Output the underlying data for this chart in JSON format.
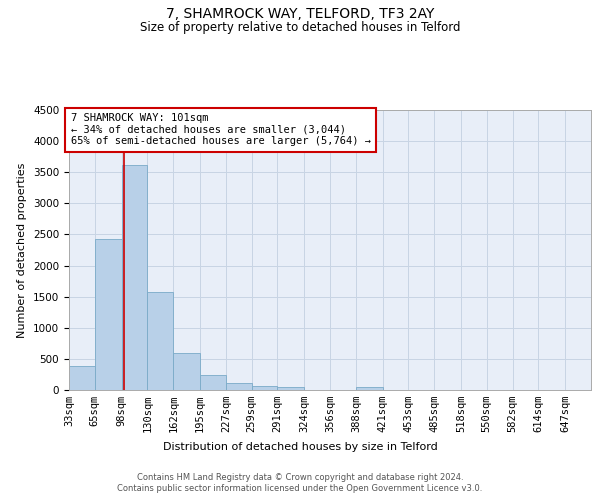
{
  "title": "7, SHAMROCK WAY, TELFORD, TF3 2AY",
  "subtitle": "Size of property relative to detached houses in Telford",
  "xlabel": "Distribution of detached houses by size in Telford",
  "ylabel": "Number of detached properties",
  "footer_line1": "Contains HM Land Registry data © Crown copyright and database right 2024.",
  "footer_line2": "Contains public sector information licensed under the Open Government Licence v3.0.",
  "annotation_line1": "7 SHAMROCK WAY: 101sqm",
  "annotation_line2": "← 34% of detached houses are smaller (3,044)",
  "annotation_line3": "65% of semi-detached houses are larger (5,764) →",
  "property_size": 101,
  "bar_edges": [
    33,
    65,
    98,
    130,
    162,
    195,
    227,
    259,
    291,
    324,
    356,
    388,
    421,
    453,
    485,
    518,
    550,
    582,
    614,
    647,
    679
  ],
  "bar_heights": [
    380,
    2420,
    3620,
    1580,
    600,
    245,
    110,
    65,
    45,
    0,
    0,
    55,
    0,
    0,
    0,
    0,
    0,
    0,
    0,
    0
  ],
  "bar_color": "#b8d0e8",
  "bar_edge_color": "#7aaac8",
  "red_line_color": "#cc0000",
  "grid_color": "#c8d4e4",
  "bg_color": "#e8eef8",
  "ylim": [
    0,
    4500
  ],
  "yticks": [
    0,
    500,
    1000,
    1500,
    2000,
    2500,
    3000,
    3500,
    4000,
    4500
  ],
  "tick_label_fontsize": 7.5,
  "title_fontsize": 10,
  "subtitle_fontsize": 8.5,
  "xlabel_fontsize": 8,
  "ylabel_fontsize": 8,
  "annotation_fontsize": 7.5,
  "footer_fontsize": 6
}
